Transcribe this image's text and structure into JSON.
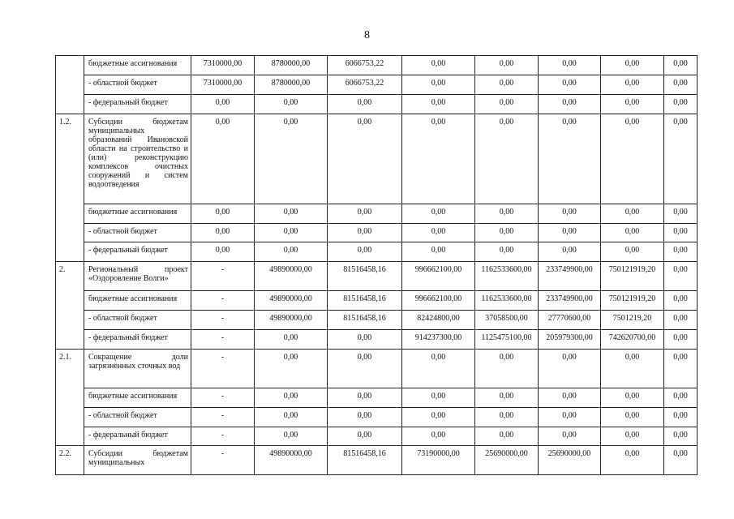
{
  "page_number": "8",
  "groups": [
    {
      "num": "",
      "rows": [
        {
          "name": "бюджетные ассигнования",
          "values": [
            "7310000,00",
            "8780000,00",
            "6066753,22",
            "0,00",
            "0,00",
            "0,00",
            "0,00",
            "0,00"
          ]
        },
        {
          "name": "- областной бюджет",
          "values": [
            "7310000,00",
            "8780000,00",
            "6066753,22",
            "0,00",
            "0,00",
            "0,00",
            "0,00",
            "0,00"
          ]
        },
        {
          "name": "- федеральный бюджет",
          "values": [
            "0,00",
            "0,00",
            "0,00",
            "0,00",
            "0,00",
            "0,00",
            "0,00",
            "0,00"
          ]
        }
      ]
    },
    {
      "num": "1.2.",
      "rows": [
        {
          "name": "Субсидии бюджетам муниципальных образований Ивановской области на строительство и (или) реконструкцию комплексов очистных сооружений и систем водоотведения",
          "values": [
            "0,00",
            "0,00",
            "0,00",
            "0,00",
            "0,00",
            "0,00",
            "0,00",
            "0,00"
          ]
        },
        {
          "name": "бюджетные ассигнования",
          "values": [
            "0,00",
            "0,00",
            "0,00",
            "0,00",
            "0,00",
            "0,00",
            "0,00",
            "0,00"
          ]
        },
        {
          "name": "- областной бюджет",
          "values": [
            "0,00",
            "0,00",
            "0,00",
            "0,00",
            "0,00",
            "0,00",
            "0,00",
            "0,00"
          ]
        },
        {
          "name": "- федеральный бюджет",
          "values": [
            "0,00",
            "0,00",
            "0,00",
            "0,00",
            "0,00",
            "0,00",
            "0,00",
            "0,00"
          ]
        }
      ]
    },
    {
      "num": "2.",
      "rows": [
        {
          "name": "Региональный проект «Оздоровление Волги»",
          "values": [
            "-",
            "49890000,00",
            "81516458,16",
            "996662100,00",
            "1162533600,00",
            "233749900,00",
            "750121919,20",
            "0,00"
          ]
        },
        {
          "name": "бюджетные ассигнования",
          "values": [
            "-",
            "49890000,00",
            "81516458,16",
            "996662100,00",
            "1162533600,00",
            "233749900,00",
            "750121919,20",
            "0,00"
          ]
        },
        {
          "name": "- областной бюджет",
          "values": [
            "-",
            "49890000,00",
            "81516458,16",
            "82424800,00",
            "37058500,00",
            "27770600,00",
            "7501219,20",
            "0,00"
          ]
        },
        {
          "name": "- федеральный бюджет",
          "values": [
            "-",
            "0,00",
            "0,00",
            "914237300,00",
            "1125475100,00",
            "205979300,00",
            "742620700,00",
            "0,00"
          ]
        }
      ]
    },
    {
      "num": "2.1.",
      "rows": [
        {
          "name": "Сокращение доли загрязненных сточных вод",
          "values": [
            "-",
            "0,00",
            "0,00",
            "0,00",
            "0,00",
            "0,00",
            "0,00",
            "0,00"
          ]
        },
        {
          "name": "бюджетные ассигнования",
          "values": [
            "-",
            "0,00",
            "0,00",
            "0,00",
            "0,00",
            "0,00",
            "0,00",
            "0,00"
          ]
        },
        {
          "name": "- областной бюджет",
          "values": [
            "-",
            "0,00",
            "0,00",
            "0,00",
            "0,00",
            "0,00",
            "0,00",
            "0,00"
          ]
        },
        {
          "name": "- федеральный бюджет",
          "values": [
            "-",
            "0,00",
            "0,00",
            "0,00",
            "0,00",
            "0,00",
            "0,00",
            "0,00"
          ]
        }
      ]
    },
    {
      "num": "2.2.",
      "rows": [
        {
          "name": "Субсидии бюджетам муниципальных",
          "values": [
            "-",
            "49890000,00",
            "81516458,16",
            "73190000,00",
            "25690000,00",
            "25690000,00",
            "0,00",
            "0,00"
          ]
        }
      ]
    }
  ]
}
